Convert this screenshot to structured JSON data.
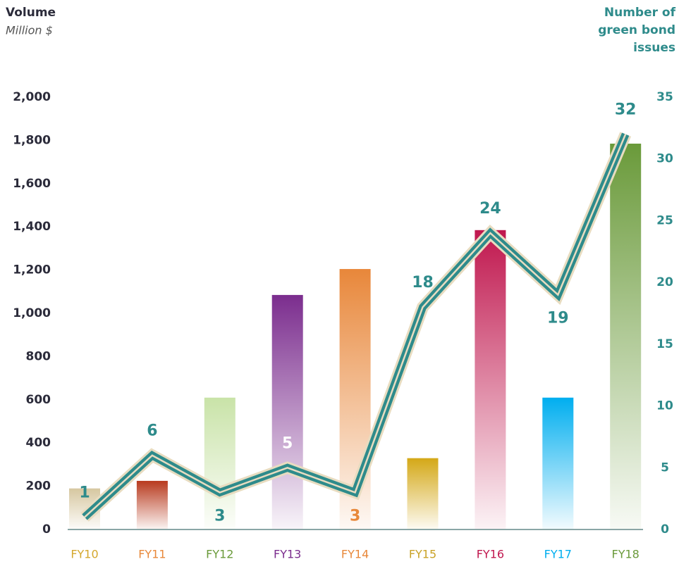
{
  "chart_data": {
    "type": "bar_line",
    "y_label": "Volume",
    "y_sublabel": "Million $",
    "y2_label": [
      "Number of",
      "green bond",
      "issues"
    ],
    "categories": [
      "FY10",
      "FY11",
      "FY12",
      "FY13",
      "FY14",
      "FY15",
      "FY16",
      "FY17",
      "FY18"
    ],
    "category_colors": [
      "#d4a72c",
      "#e8883a",
      "#6a9a3a",
      "#7b2d8e",
      "#e8883a",
      "#c9a227",
      "#c0174e",
      "#00aeef",
      "#6a9a3a"
    ],
    "series": [
      {
        "name": "Volume",
        "type": "bar",
        "colors": [
          "#d6c7a0",
          "#b83a1e",
          "#c9e3a8",
          "#7b2d8e",
          "#e8873a",
          "#d4a817",
          "#c0174e",
          "#00aeef",
          "#6a9a3a"
        ],
        "values": [
          190,
          225,
          610,
          1085,
          1205,
          330,
          1385,
          610,
          1785
        ]
      },
      {
        "name": "Number of green bond issues",
        "type": "line",
        "axis": "y2",
        "color": "#2e8b8b",
        "outline": "#e8dcc0",
        "values": [
          1,
          6,
          3,
          5,
          3,
          18,
          24,
          19,
          32
        ],
        "value_label_colors": [
          "#2e8b8b",
          "#2e8b8b",
          "#2e8b8b",
          "#ffffff",
          "#e8883a",
          "#2e8b8b",
          "#2e8b8b",
          "#2e8b8b",
          "#2e8b8b"
        ]
      }
    ],
    "ylim": [
      0,
      2000
    ],
    "yticks": [
      0,
      200,
      400,
      600,
      800,
      {
        "value": 1000,
        "label": "1,000"
      },
      {
        "value": 1200,
        "label": "1,200"
      },
      {
        "value": 1400,
        "label": "1,400"
      },
      {
        "value": 1600,
        "label": "1,600"
      },
      {
        "value": 1800,
        "label": "1,800"
      },
      {
        "value": 2000,
        "label": "2,000"
      }
    ],
    "y2lim": [
      0,
      35
    ],
    "y2ticks": [
      0,
      5,
      10,
      15,
      20,
      25,
      30,
      35
    ]
  }
}
